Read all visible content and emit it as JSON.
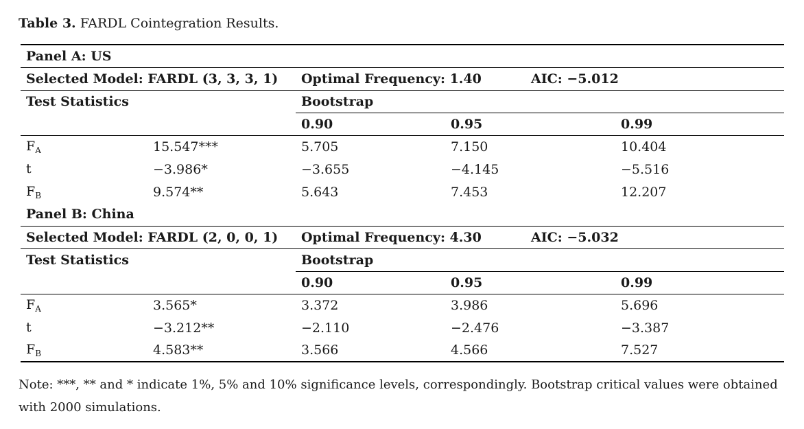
{
  "caption": {
    "label": "Table 3.",
    "text": "FARDL Cointegration Results."
  },
  "header_labels": {
    "test_statistics": "Test Statistics",
    "bootstrap": "Bootstrap",
    "levels": [
      "0.90",
      "0.95",
      "0.99"
    ]
  },
  "panels": [
    {
      "title": "Panel A: US",
      "model": "Selected Model: FARDL (3, 3, 3, 1)",
      "frequency": "Optimal Frequency: 1.40",
      "aic": "AIC: −5.012",
      "rows": [
        {
          "stat": "F",
          "sub": "A",
          "value": "15.547***",
          "c90": "5.705",
          "c95": "7.150",
          "c99": "10.404"
        },
        {
          "stat": "t",
          "sub": "",
          "value": "−3.986*",
          "c90": "−3.655",
          "c95": "−4.145",
          "c99": "−5.516"
        },
        {
          "stat": "F",
          "sub": "B",
          "value": "9.574**",
          "c90": "5.643",
          "c95": "7.453",
          "c99": "12.207"
        }
      ]
    },
    {
      "title": "Panel B: China",
      "model": "Selected Model: FARDL (2, 0, 0, 1)",
      "frequency": "Optimal Frequency: 4.30",
      "aic": "AIC: −5.032",
      "rows": [
        {
          "stat": "F",
          "sub": "A",
          "value": "3.565*",
          "c90": "3.372",
          "c95": "3.986",
          "c99": "5.696"
        },
        {
          "stat": "t",
          "sub": "",
          "value": "−3.212**",
          "c90": "−2.110",
          "c95": "−2.476",
          "c99": "−3.387"
        },
        {
          "stat": "F",
          "sub": "B",
          "value": "4.583**",
          "c90": "3.566",
          "c95": "4.566",
          "c99": "7.527"
        }
      ]
    }
  ],
  "note": "Note: ***, ** and * indicate 1%, 5% and 10% significance levels, correspondingly. Bootstrap critical values were obtained with 2000 simulations."
}
